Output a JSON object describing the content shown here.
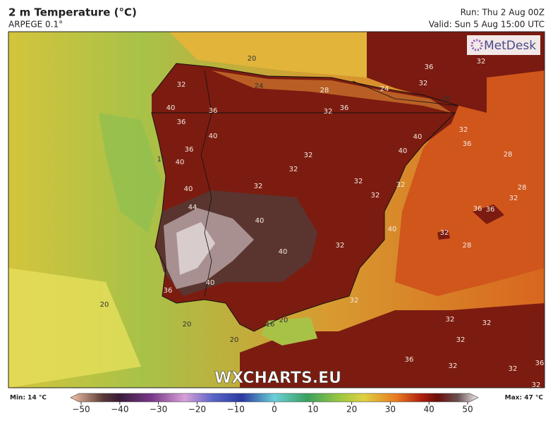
{
  "header": {
    "title": "2 m Temperature (°C)",
    "subtitle": "ARPEGE 0.1°",
    "run": "Run: Thu 2 Aug 00Z",
    "valid": "Valid: Sun 5 Aug 15:00 UTC"
  },
  "logo": "MetDesk",
  "watermark": "WXCHARTS.EU",
  "contour_labels": [
    "20",
    "32",
    "24",
    "28",
    "36",
    "32",
    "32",
    "24",
    "20",
    "40",
    "36",
    "36",
    "32",
    "36",
    "40",
    "40",
    "32",
    "36",
    "36",
    "32",
    "40",
    "28",
    "16",
    "40",
    "32",
    "32",
    "32",
    "40",
    "32",
    "28",
    "44",
    "32",
    "32",
    "36",
    "36",
    "40",
    "40",
    "32",
    "32",
    "28",
    "40",
    "40",
    "36",
    "20",
    "32",
    "20",
    "16",
    "20",
    "32",
    "32",
    "32",
    "20",
    "36",
    "32",
    "32",
    "36",
    "32"
  ],
  "colorbar": {
    "min_label": "Min: 14 °C",
    "max_label": "Max: 47 °C",
    "lim": [
      -50,
      50
    ],
    "ticks": [
      {
        "value": -50,
        "label": "−50"
      },
      {
        "value": -40,
        "label": "−40"
      },
      {
        "value": -30,
        "label": "−30"
      },
      {
        "value": -20,
        "label": "−20"
      },
      {
        "value": -10,
        "label": "−10"
      },
      0,
      10,
      20,
      30,
      40,
      50
    ]
  }
}
